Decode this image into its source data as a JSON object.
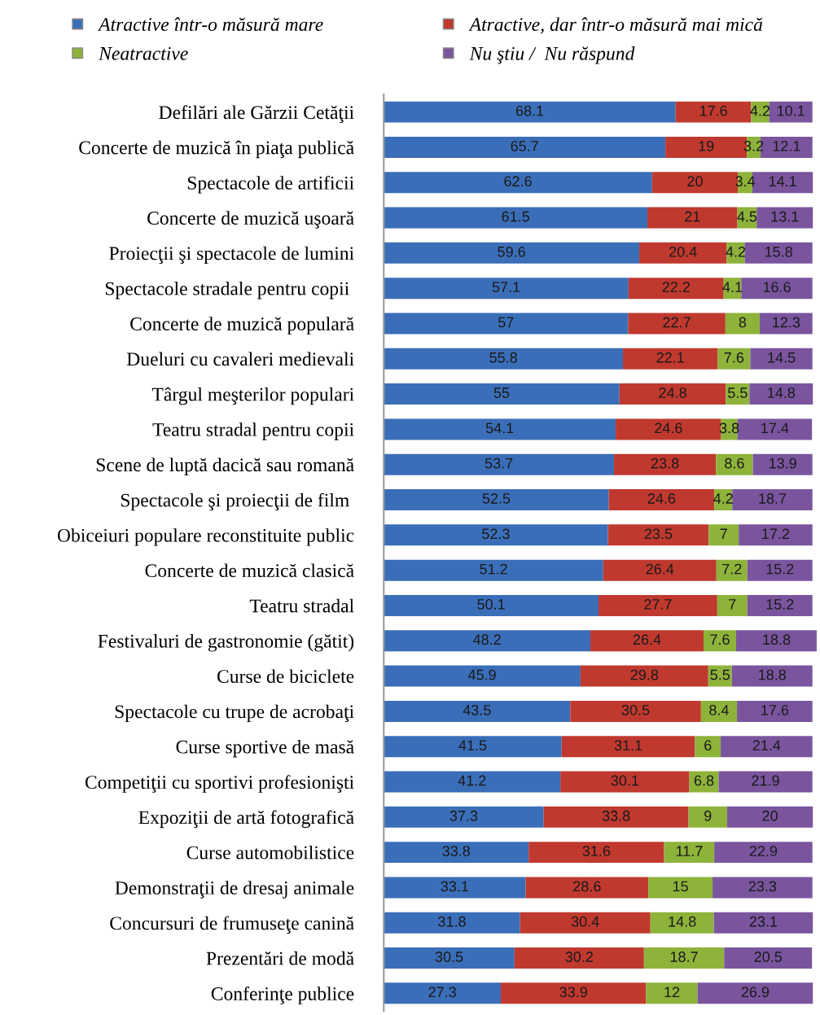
{
  "chart_data": {
    "type": "bar",
    "orientation": "horizontal",
    "stacked": true,
    "data_labels": true,
    "legend": "top",
    "grid": false,
    "tick_labels": "y",
    "xlim": [
      0,
      101
    ],
    "categories": [
      "Defilări ale Gărzii Cetăţii",
      "Concerte de muzică în piaţa publică",
      "Spectacole de artificii",
      "Concerte de muzică uşoară",
      "Proiecţii şi spectacole de lumini",
      "Spectacole stradale pentru copii ",
      "Concerte de muzică populară",
      "Dueluri cu cavaleri medievali",
      "Târgul meşterilor populari",
      "Teatru stradal pentru copii",
      "Scene de luptă dacică sau romană",
      "Spectacole şi proiecţii de film ",
      "Obiceiuri populare reconstituite public",
      "Concerte de muzică clasică",
      "Teatru stradal",
      "Festivaluri de gastronomie (gătit)",
      "Curse de biciclete",
      "Spectacole cu trupe de acrobaţi",
      "Curse sportive de masă",
      "Competiţii cu sportivi profesionişti",
      "Expoziţii de artă fotografică",
      "Curse automobilistice",
      "Demonstraţii de dresaj animale",
      "Concursuri de frumuseţe canină",
      "Prezentări de modă",
      "Conferinţe publice"
    ],
    "series": [
      {
        "name": "Atractive într-o măsură mare",
        "color": "#3b6eb8",
        "values": [
          68.1,
          65.7,
          62.6,
          61.5,
          59.6,
          57.1,
          57,
          55.8,
          55,
          54.1,
          53.7,
          52.5,
          52.3,
          51.2,
          50.1,
          48.2,
          45.9,
          43.5,
          41.5,
          41.2,
          37.3,
          33.8,
          33.1,
          31.8,
          30.5,
          27.3
        ]
      },
      {
        "name": "Atractive, dar într-o măsură mai mică",
        "color": "#c0392f",
        "values": [
          17.6,
          19,
          20,
          21,
          20.4,
          22.2,
          22.7,
          22.1,
          24.8,
          24.6,
          23.8,
          24.6,
          23.5,
          26.4,
          27.7,
          26.4,
          29.8,
          30.5,
          31.1,
          30.1,
          33.8,
          31.6,
          28.6,
          30.4,
          30.2,
          33.9
        ]
      },
      {
        "name": "Neatractive",
        "color": "#8db33a",
        "values": [
          4.2,
          3.2,
          3.4,
          4.5,
          4.2,
          4.1,
          8,
          7.6,
          5.5,
          3.8,
          8.6,
          4.2,
          7,
          7.2,
          7,
          7.6,
          5.5,
          8.4,
          6,
          6.8,
          9,
          11.7,
          15,
          14.8,
          18.7,
          12
        ]
      },
      {
        "name": "Nu ştiu /  Nu răspund",
        "color": "#7a559e",
        "values": [
          10.1,
          12.1,
          14.1,
          13.1,
          15.8,
          16.6,
          12.3,
          14.5,
          14.8,
          17.4,
          13.9,
          18.7,
          17.2,
          15.2,
          15.2,
          18.8,
          18.8,
          17.6,
          21.4,
          21.9,
          20,
          22.9,
          23.3,
          23.1,
          20.5,
          26.9
        ]
      }
    ]
  }
}
